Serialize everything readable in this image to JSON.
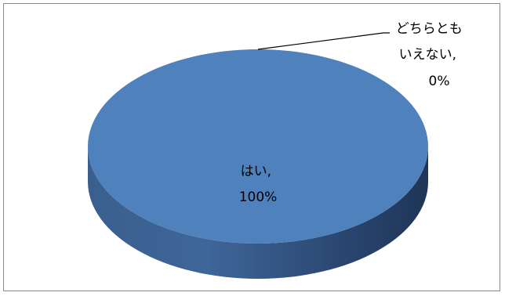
{
  "chart_data": {
    "type": "pie",
    "style": "3d",
    "slices": [
      {
        "label_lines": [
          "はい,",
          "100%"
        ],
        "value": 100,
        "color": "#4f81bd"
      },
      {
        "label_lines": [
          "どちらとも",
          "いえない,",
          "0%"
        ],
        "value": 0,
        "color": "#c0504d"
      }
    ],
    "legend": "none"
  }
}
